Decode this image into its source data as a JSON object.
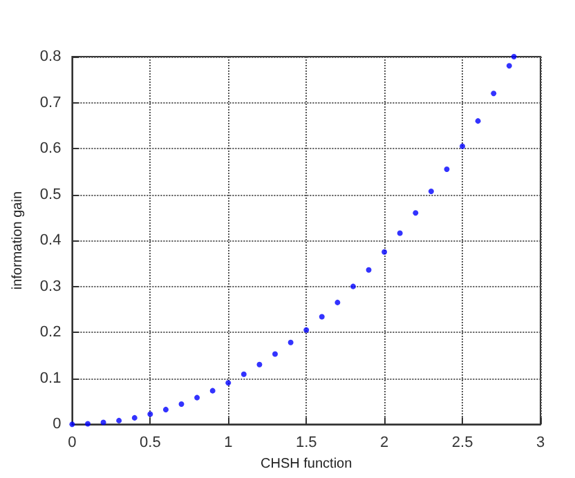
{
  "chart_data": {
    "type": "scatter",
    "xlabel": "CHSH function",
    "ylabel": "information gain",
    "x": [
      0,
      0.1,
      0.2,
      0.3,
      0.4,
      0.5,
      0.6,
      0.7,
      0.8,
      0.9,
      1.0,
      1.1,
      1.2,
      1.3,
      1.4,
      1.5,
      1.6,
      1.7,
      1.8,
      1.9,
      2.0,
      2.1,
      2.2,
      2.3,
      2.4,
      2.5,
      2.6,
      2.7,
      2.8,
      2.83
    ],
    "series": [
      {
        "color": "#0000ff",
        "values": [
          0,
          0.001,
          0.004,
          0.008,
          0.014,
          0.022,
          0.032,
          0.044,
          0.058,
          0.073,
          0.09,
          0.109,
          0.13,
          0.153,
          0.178,
          0.205,
          0.234,
          0.265,
          0.3,
          0.336,
          0.375,
          0.416,
          0.46,
          0.507,
          0.555,
          0.605,
          0.66,
          0.72,
          0.78,
          0.8
        ]
      }
    ],
    "xlim": [
      0,
      3
    ],
    "xticks": [
      0,
      0.5,
      1,
      1.5,
      2,
      2.5,
      3
    ],
    "ylim": [
      0,
      0.8
    ],
    "yticks": [
      0,
      0.1,
      0.2,
      0.3,
      0.4,
      0.5,
      0.6,
      0.7,
      0.8
    ],
    "grid": true,
    "marker": "circle",
    "line_style": "dotted"
  }
}
